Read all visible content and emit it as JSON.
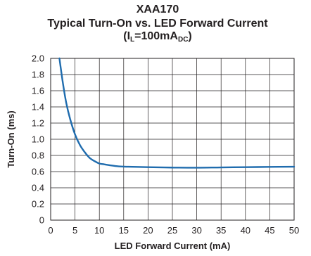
{
  "chart_data": {
    "type": "line",
    "title": "XAA170",
    "subtitle": "Typical Turn-On vs. LED Forward Current",
    "condition": {
      "prefix": "(I",
      "sub1": "L",
      "mid": "=100mA",
      "sub2": "DC",
      "suffix": ")"
    },
    "xlabel": "LED Forward Current (mA)",
    "ylabel": "Turn-On (ms)",
    "xlim": [
      0,
      50
    ],
    "ylim": [
      0,
      2.0
    ],
    "xticks": [
      "0",
      "5",
      "10",
      "15",
      "20",
      "25",
      "30",
      "35",
      "40",
      "45",
      "50"
    ],
    "yticks": [
      "0",
      "0.2",
      "0.4",
      "0.6",
      "0.8",
      "1.0",
      "1.2",
      "1.4",
      "1.6",
      "1.8",
      "2.0"
    ],
    "grid": true,
    "series": [
      {
        "color": "#1f6cae",
        "x": [
          1.8,
          2.5,
          3.2,
          4.0,
          5.0,
          6.0,
          7.0,
          8.0,
          9.0,
          10.0,
          11.0,
          12.0,
          14.0,
          16.0,
          20.0,
          25.0,
          30.0,
          35.0,
          40.0,
          45.0,
          50.0
        ],
        "y": [
          2.0,
          1.7,
          1.45,
          1.25,
          1.06,
          0.93,
          0.84,
          0.77,
          0.73,
          0.7,
          0.69,
          0.68,
          0.665,
          0.66,
          0.655,
          0.65,
          0.648,
          0.652,
          0.655,
          0.658,
          0.66
        ]
      }
    ]
  }
}
